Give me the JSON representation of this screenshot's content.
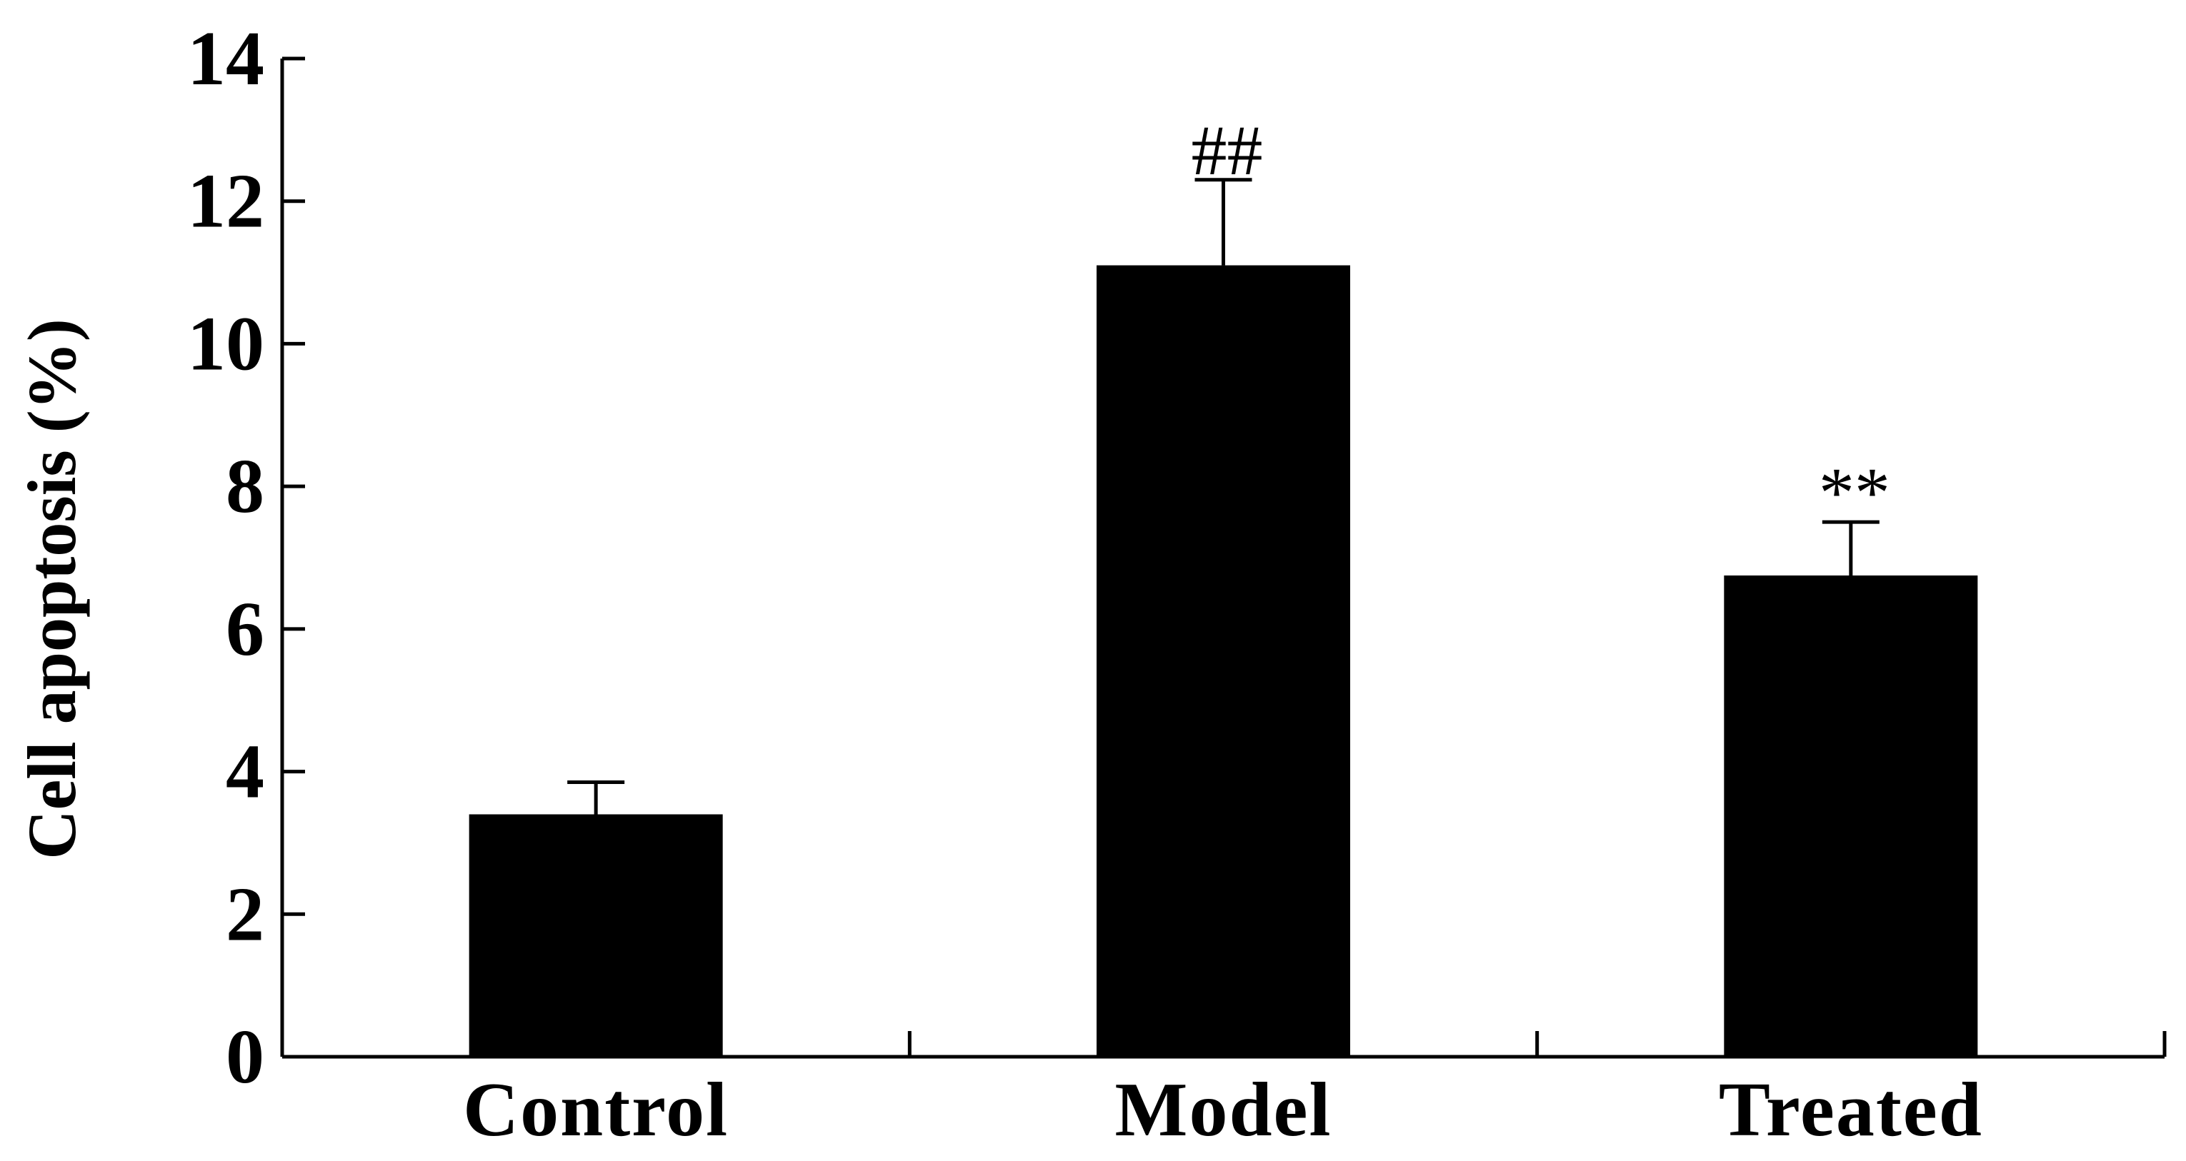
{
  "chart_data": {
    "type": "bar",
    "title": "",
    "xlabel": "",
    "ylabel": "Cell apoptosis (%)",
    "categories": [
      "Control",
      "Model",
      "Treated"
    ],
    "values": [
      3.4,
      11.1,
      6.75
    ],
    "errors": [
      0.45,
      1.2,
      0.75
    ],
    "annotations": [
      "",
      "##",
      "**"
    ],
    "ylim": [
      0,
      14
    ],
    "yticks": [
      0,
      2,
      4,
      6,
      8,
      10,
      12,
      14
    ],
    "grid": false,
    "legend": "none",
    "colors": {
      "bar": "#000000",
      "axis": "#000000",
      "background": "#ffffff"
    }
  }
}
